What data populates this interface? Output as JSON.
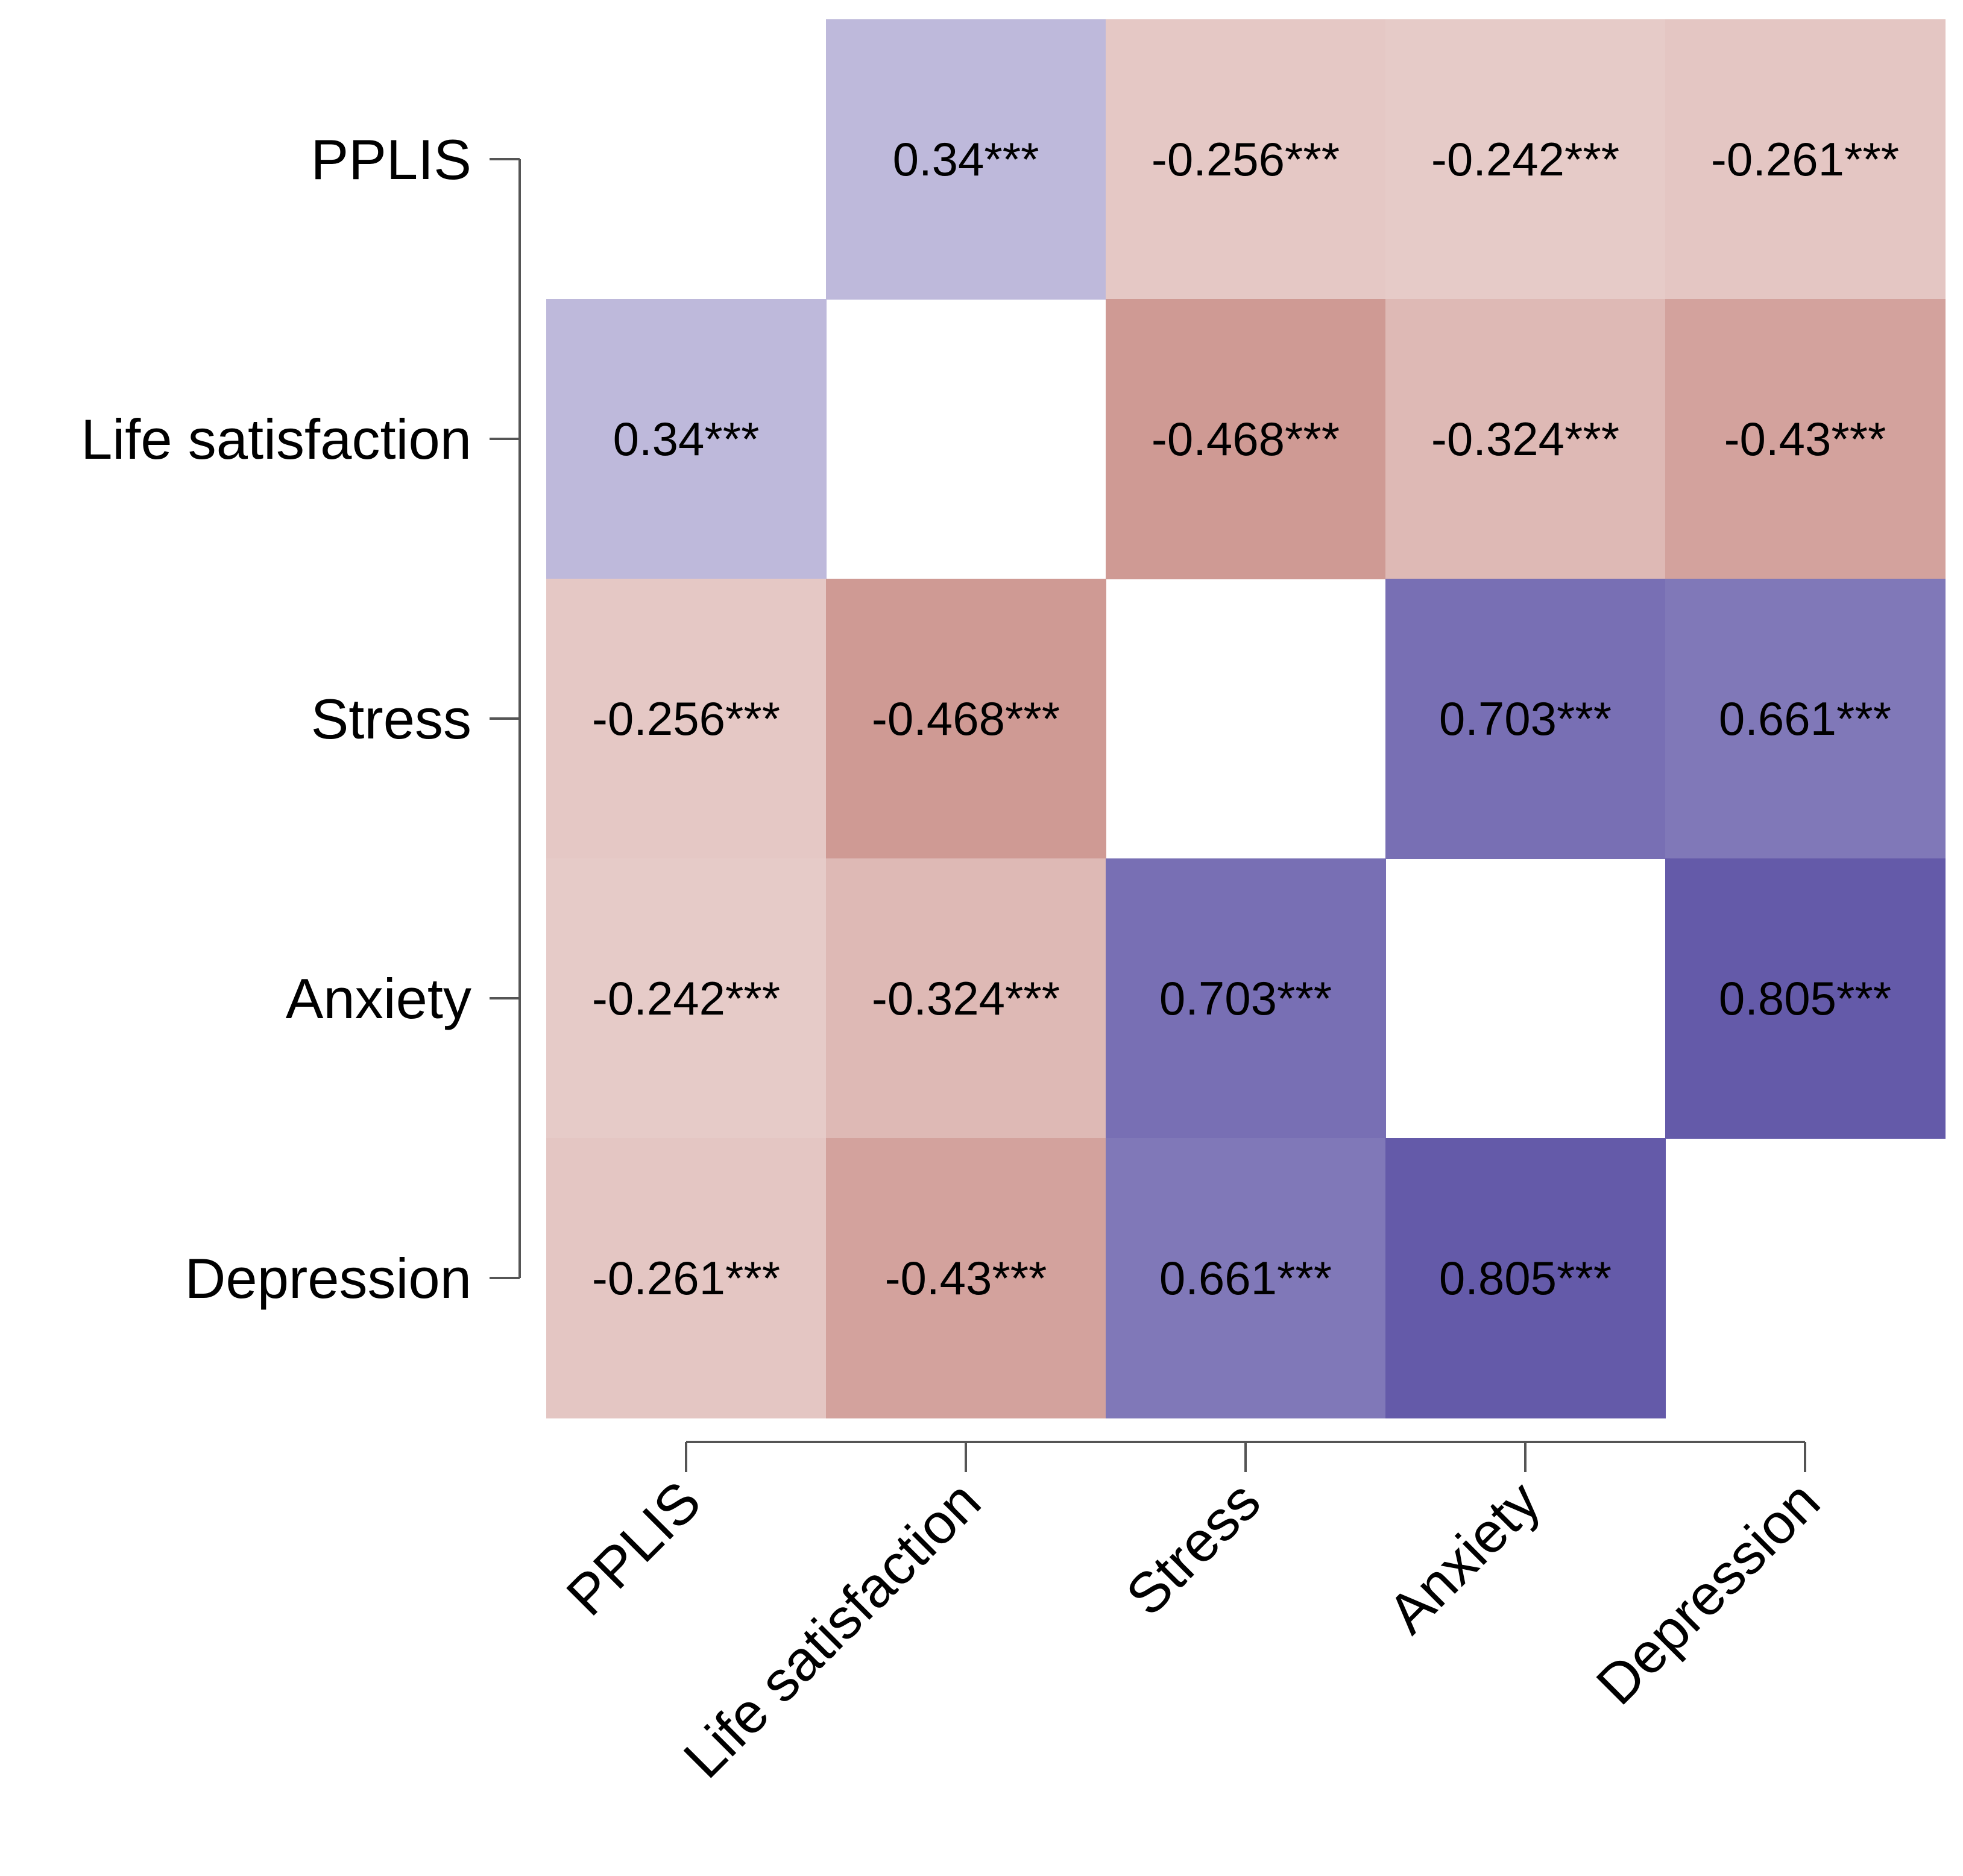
{
  "chart_data": {
    "type": "heatmap",
    "variables": [
      "PPLIS",
      "Life satisfaction",
      "Stress",
      "Anxiety",
      "Depression"
    ],
    "matrix": [
      [
        null,
        0.34,
        -0.256,
        -0.242,
        -0.261
      ],
      [
        0.34,
        null,
        -0.468,
        -0.324,
        -0.43
      ],
      [
        -0.256,
        -0.468,
        null,
        0.703,
        0.661
      ],
      [
        -0.242,
        -0.324,
        0.703,
        null,
        0.805
      ],
      [
        -0.261,
        -0.43,
        0.661,
        0.805,
        null
      ]
    ],
    "labels": [
      [
        null,
        "0.34***",
        "-0.256***",
        "-0.242***",
        "-0.261***"
      ],
      [
        "0.34***",
        null,
        "-0.468***",
        "-0.324***",
        "-0.43***"
      ],
      [
        "-0.256***",
        "-0.468***",
        null,
        "0.703***",
        "0.661***"
      ],
      [
        "-0.242***",
        "-0.324***",
        "0.703***",
        null,
        "0.805***"
      ],
      [
        "-0.261***",
        "-0.43***",
        "0.661***",
        "0.805***",
        null
      ]
    ],
    "color_scale": {
      "positive": [
        "#ffffff",
        "#645aa9"
      ],
      "negative": [
        "#ffffff",
        "#b96a62"
      ],
      "range": [
        -1,
        1
      ]
    },
    "diagonal": "blank",
    "title": "",
    "xlabel": "",
    "ylabel": ""
  }
}
